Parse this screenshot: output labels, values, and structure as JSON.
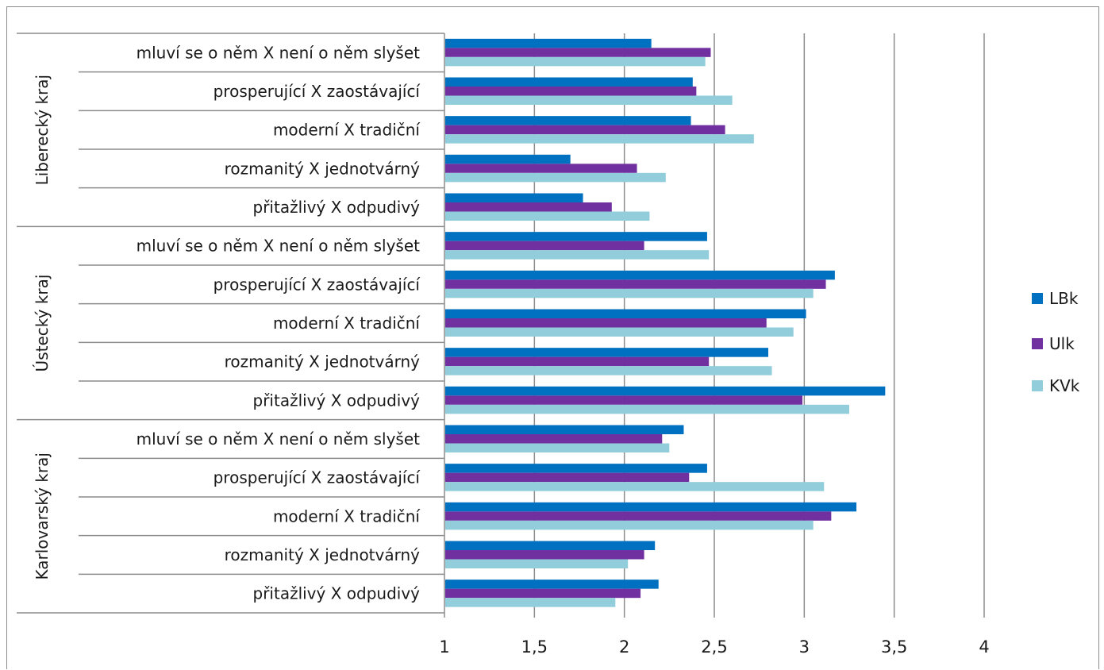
{
  "chart_data": {
    "type": "bar",
    "orientation": "horizontal",
    "title": "",
    "xlabel": "",
    "ylabel": "",
    "xlim": [
      1,
      4
    ],
    "x_ticks": [
      1,
      1.5,
      2,
      2.5,
      3,
      3.5,
      4
    ],
    "x_tick_labels": [
      "1",
      "1,5",
      "2",
      "2,5",
      "3",
      "3,5",
      "4"
    ],
    "grid": "vertical",
    "legend_position": "right",
    "series": [
      {
        "name": "LBk",
        "color": "#0070c0"
      },
      {
        "name": "Ulk",
        "color": "#7030a0"
      },
      {
        "name": "KVk",
        "color": "#92cddc"
      }
    ],
    "groups": [
      {
        "name": "Liberecký kraj",
        "categories": [
          {
            "label": "mluví se o něm X není o něm slyšet",
            "values": [
              2.15,
              2.48,
              2.45
            ]
          },
          {
            "label": "prosperující X zaostávající",
            "values": [
              2.38,
              2.4,
              2.6
            ]
          },
          {
            "label": "moderní X tradiční",
            "values": [
              2.37,
              2.56,
              2.72
            ]
          },
          {
            "label": "rozmanitý X jednotvárný",
            "values": [
              1.7,
              2.07,
              2.23
            ]
          },
          {
            "label": "přitažlivý X odpudivý",
            "values": [
              1.77,
              1.93,
              2.14
            ]
          }
        ]
      },
      {
        "name": "Ústecký kraj",
        "categories": [
          {
            "label": "mluví se o něm X není o něm slyšet",
            "values": [
              2.46,
              2.11,
              2.47
            ]
          },
          {
            "label": "prosperující X zaostávající",
            "values": [
              3.17,
              3.12,
              3.05
            ]
          },
          {
            "label": "moderní X tradiční",
            "values": [
              3.01,
              2.79,
              2.94
            ]
          },
          {
            "label": "rozmanitý X jednotvárný",
            "values": [
              2.8,
              2.47,
              2.82
            ]
          },
          {
            "label": "přitažlivý X odpudivý",
            "values": [
              3.45,
              2.99,
              3.25
            ]
          }
        ]
      },
      {
        "name": "Karlovarský kraj",
        "categories": [
          {
            "label": "mluví se o něm X není o něm slyšet",
            "values": [
              2.33,
              2.21,
              2.25
            ]
          },
          {
            "label": "prosperující X zaostávající",
            "values": [
              2.46,
              2.36,
              3.11
            ]
          },
          {
            "label": "moderní X tradiční",
            "values": [
              3.29,
              3.15,
              3.05
            ]
          },
          {
            "label": "rozmanitý X jednotvárný",
            "values": [
              2.17,
              2.11,
              2.02
            ]
          },
          {
            "label": "přitažlivý X odpudivý",
            "values": [
              2.19,
              2.09,
              1.95
            ]
          }
        ]
      }
    ]
  }
}
